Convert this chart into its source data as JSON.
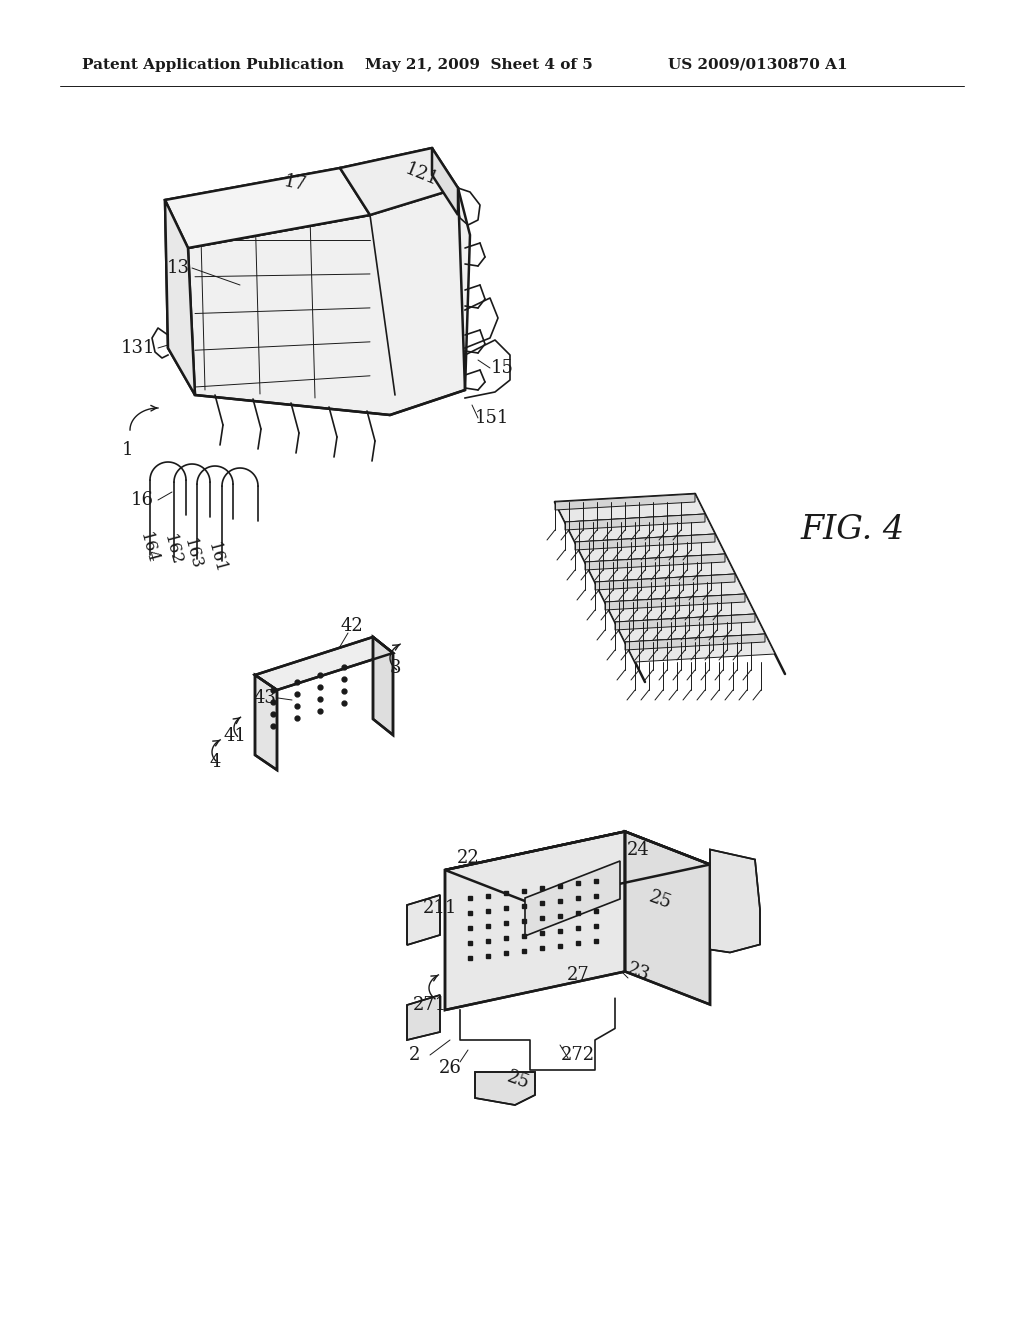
{
  "background_color": "#ffffff",
  "line_color": "#1a1a1a",
  "header_left": "Patent Application Publication",
  "header_mid": "May 21, 2009  Sheet 4 of 5",
  "header_right": "US 2009/0130870 A1",
  "fig_label": "FIG. 4",
  "header_fontsize": 11,
  "label_fontsize": 12,
  "fig_label_fontsize": 24
}
